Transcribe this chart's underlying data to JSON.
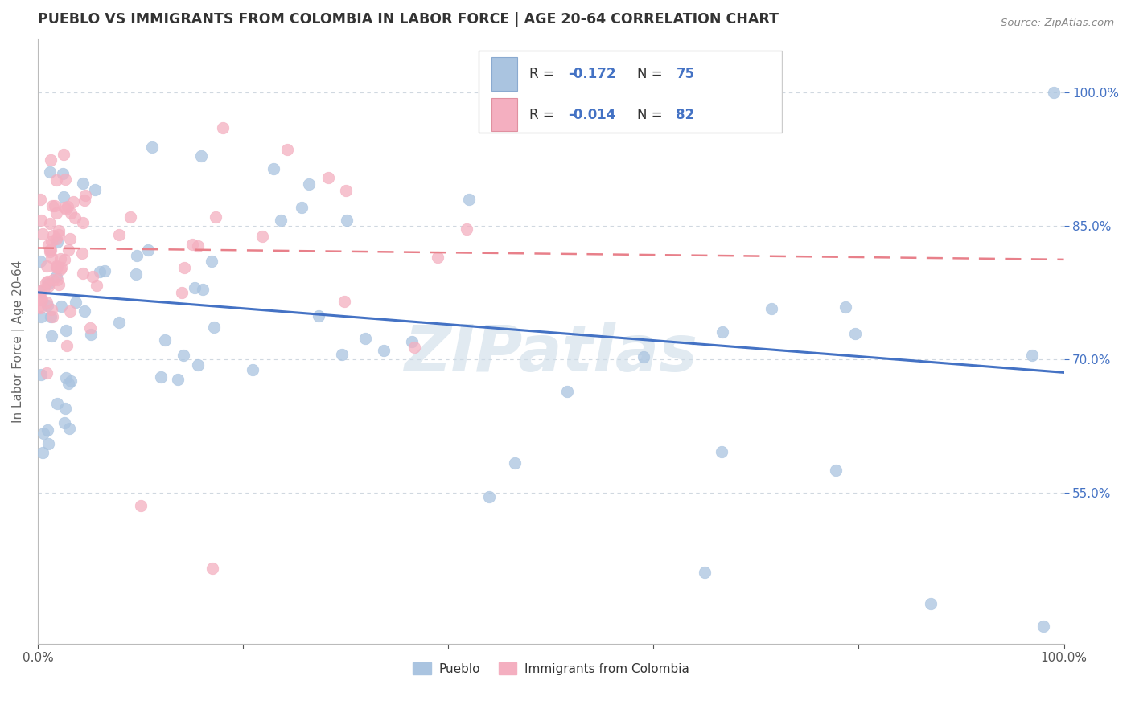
{
  "title": "PUEBLO VS IMMIGRANTS FROM COLOMBIA IN LABOR FORCE | AGE 20-64 CORRELATION CHART",
  "source": "Source: ZipAtlas.com",
  "ylabel": "In Labor Force | Age 20-64",
  "xlim": [
    0.0,
    1.0
  ],
  "ylim": [
    0.38,
    1.06
  ],
  "x_ticks": [
    0.0,
    0.2,
    0.4,
    0.6,
    0.8,
    1.0
  ],
  "x_tick_labels": [
    "0.0%",
    "",
    "",
    "",
    "",
    "100.0%"
  ],
  "y_ticks": [
    0.55,
    0.7,
    0.85,
    1.0
  ],
  "y_tick_labels": [
    "55.0%",
    "70.0%",
    "85.0%",
    "100.0%"
  ],
  "pueblo_R": -0.172,
  "pueblo_N": 75,
  "colombia_R": -0.014,
  "colombia_N": 82,
  "pueblo_color": "#aac4e0",
  "colombia_color": "#f4afc0",
  "pueblo_line_color": "#4472c4",
  "colombia_line_color": "#e8808a",
  "legend_color": "#4472c4",
  "watermark_text": "ZIPatlas",
  "watermark_color": "#cddce8",
  "background_color": "#ffffff",
  "grid_color": "#d0d8e0",
  "tick_label_color": "#4472c4",
  "ylabel_color": "#666666",
  "title_color": "#333333"
}
